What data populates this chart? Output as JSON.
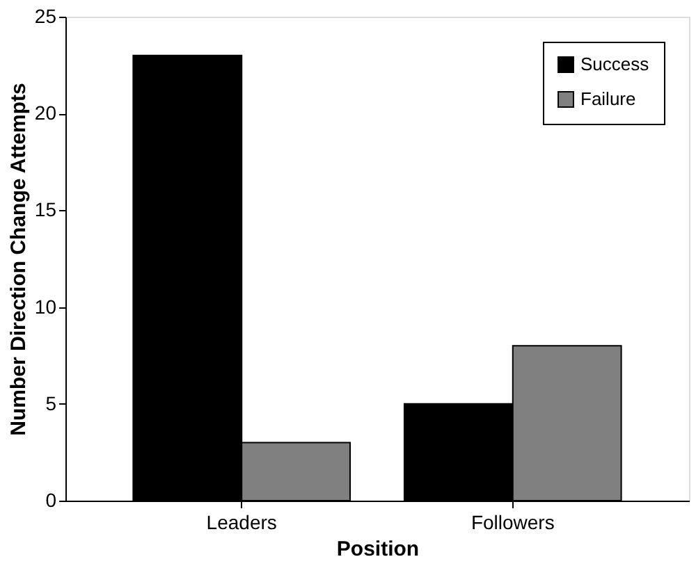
{
  "chart_data": {
    "type": "bar",
    "xlabel": "Position",
    "ylabel": "Number Direction Change Attempts",
    "categories": [
      "Leaders",
      "Followers"
    ],
    "series": [
      {
        "name": "Success",
        "color": "#000000",
        "values": [
          23,
          5
        ]
      },
      {
        "name": "Failure",
        "color": "#808080",
        "values": [
          3,
          8
        ]
      }
    ],
    "ylim": [
      0,
      25
    ],
    "yticks": [
      0,
      5,
      10,
      15,
      20,
      25
    ],
    "grid": false,
    "legend": "top right"
  }
}
